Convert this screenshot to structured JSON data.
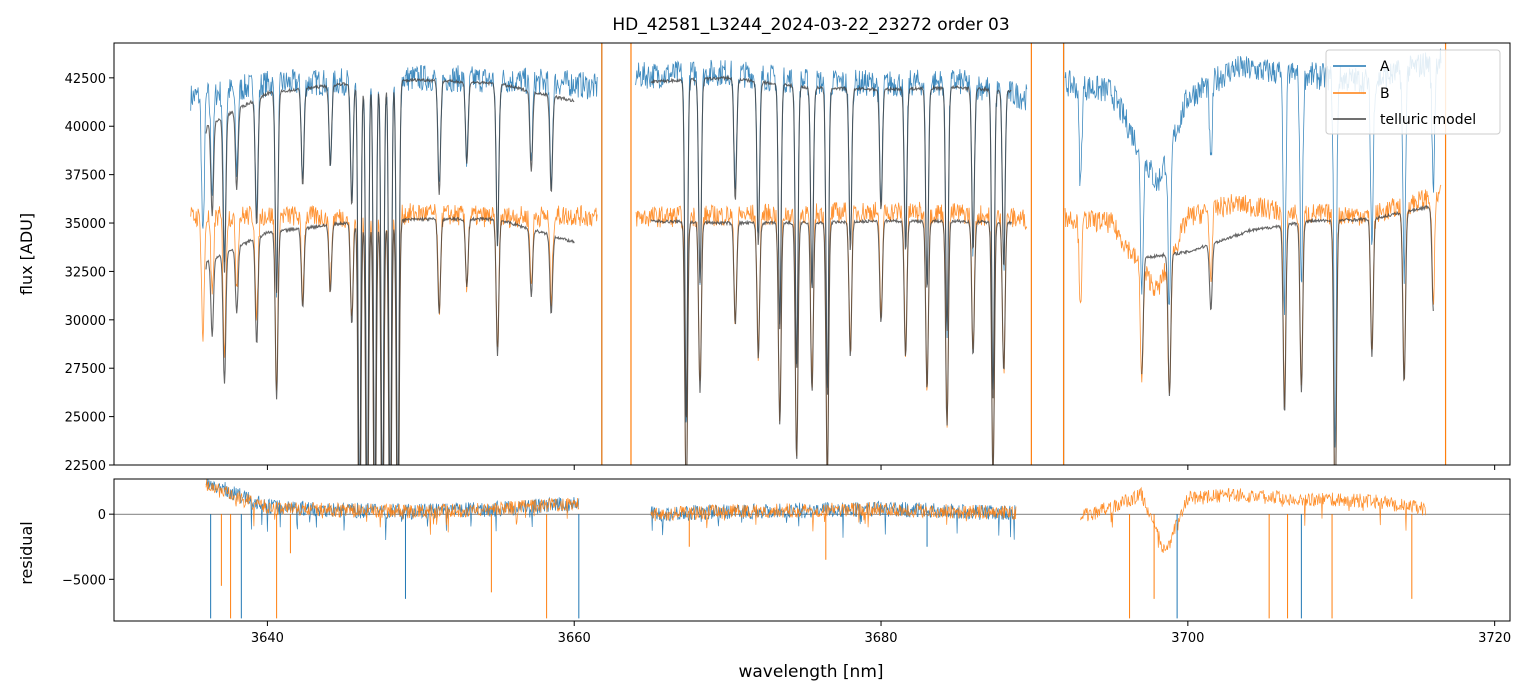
{
  "chart_data": [
    {
      "type": "line",
      "title": "HD_42581_L3244_2024-03-22_23272  order 03",
      "ylabel": "flux [ADU]",
      "xlim": [
        3630,
        3721
      ],
      "ylim": [
        22500,
        44300
      ],
      "x_ticks": [
        3640,
        3660,
        3680,
        3700,
        3720
      ],
      "y_ticks": [
        {
          "value": 22500,
          "label": "22500"
        },
        {
          "value": 25000,
          "label": "25000"
        },
        {
          "value": 27500,
          "label": "27500"
        },
        {
          "value": 30000,
          "label": "30000"
        },
        {
          "value": 32500,
          "label": "32500"
        },
        {
          "value": 35000,
          "label": "35000"
        },
        {
          "value": 37500,
          "label": "37500"
        },
        {
          "value": 40000,
          "label": "40000"
        },
        {
          "value": 42500,
          "label": "42500"
        }
      ],
      "legend": {
        "placement": "upper right",
        "entries": [
          {
            "label": "A",
            "color": "#1f77b4"
          },
          {
            "label": "B",
            "color": "#ff7f0e"
          },
          {
            "label": "telluric model",
            "color": "#404040"
          }
        ]
      },
      "series": [
        {
          "name": "A",
          "color": "#1f77b4",
          "segments": [
            {
              "x": [
                3635.0,
                3640.0,
                3645.0,
                3650.0,
                3655.0,
                3660.0,
                3661.5
              ],
              "y": [
                41500,
                42200,
                42300,
                42500,
                42400,
                42200,
                42000
              ]
            },
            {
              "x": [
                3664.0,
                3670.0,
                3675.0,
                3680.0,
                3685.0,
                3689.5
              ],
              "y": [
                42600,
                42800,
                42300,
                42200,
                42300,
                41500
              ]
            },
            {
              "x": [
                3692.0,
                3695.0,
                3698.0,
                3700.0,
                3703.0,
                3707.0,
                3712.0,
                3716.5
              ],
              "y": [
                42200,
                41800,
                37000,
                41500,
                43000,
                42700,
                42300,
                43500
              ]
            }
          ]
        },
        {
          "name": "B",
          "color": "#ff7f0e",
          "segments": [
            {
              "x": [
                3635.0,
                3640.0,
                3645.0,
                3650.0,
                3655.0,
                3660.0,
                3661.5
              ],
              "y": [
                35300,
                35400,
                35300,
                35500,
                35300,
                35400,
                35300
              ]
            },
            {
              "x": [
                3664.0,
                3670.0,
                3675.0,
                3680.0,
                3685.0,
                3689.5
              ],
              "y": [
                35300,
                35400,
                35500,
                35600,
                35500,
                35200
              ]
            },
            {
              "x": [
                3692.0,
                3695.0,
                3698.0,
                3700.0,
                3703.0,
                3707.0,
                3712.0,
                3716.5
              ],
              "y": [
                35300,
                35000,
                31500,
                35300,
                36000,
                35500,
                35400,
                36500
              ]
            }
          ]
        },
        {
          "name": "telluric model",
          "color": "#404040",
          "segments": [
            {
              "x": [
                3636.0,
                3640.0,
                3645.0,
                3650.0,
                3655.0,
                3660.0
              ],
              "y": [
                33000,
                34500,
                35000,
                35200,
                35200,
                34000
              ]
            },
            {
              "x": [
                3636.0,
                3640.0,
                3645.0,
                3650.0,
                3655.0,
                3660.0
              ],
              "y": [
                40000,
                41700,
                42200,
                42400,
                42200,
                41300
              ]
            },
            {
              "x": [
                3665.0,
                3670.0,
                3675.0,
                3680.0,
                3685.0,
                3688.5
              ],
              "y": [
                35100,
                35000,
                35000,
                35100,
                35100,
                35000
              ]
            },
            {
              "x": [
                3665.0,
                3670.0,
                3675.0,
                3680.0,
                3685.0,
                3688.5
              ],
              "y": [
                42300,
                42500,
                42000,
                41900,
                42000,
                41800
              ]
            },
            {
              "x": [
                3697.0,
                3700.0,
                3704.0,
                3708.0,
                3712.0,
                3716.0
              ],
              "y": [
                33200,
                33500,
                34600,
                35100,
                35200,
                35900
              ]
            }
          ]
        }
      ],
      "absorption_lines": [
        {
          "x": 3635.8,
          "depth": 0.18
        },
        {
          "x": 3636.4,
          "depth": 0.12
        },
        {
          "x": 3637.2,
          "depth": 0.2
        },
        {
          "x": 3638.0,
          "depth": 0.1
        },
        {
          "x": 3639.3,
          "depth": 0.16
        },
        {
          "x": 3640.6,
          "depth": 0.25
        },
        {
          "x": 3642.3,
          "depth": 0.12
        },
        {
          "x": 3644.1,
          "depth": 0.1
        },
        {
          "x": 3645.5,
          "depth": 0.15
        },
        {
          "x": 3646.0,
          "depth": 0.55
        },
        {
          "x": 3646.5,
          "depth": 0.55
        },
        {
          "x": 3647.0,
          "depth": 0.55
        },
        {
          "x": 3647.5,
          "depth": 0.55
        },
        {
          "x": 3648.0,
          "depth": 0.55
        },
        {
          "x": 3648.5,
          "depth": 0.55
        },
        {
          "x": 3651.2,
          "depth": 0.14
        },
        {
          "x": 3653.0,
          "depth": 0.1
        },
        {
          "x": 3655.0,
          "depth": 0.2
        },
        {
          "x": 3657.2,
          "depth": 0.1
        },
        {
          "x": 3658.5,
          "depth": 0.12
        },
        {
          "x": 3667.3,
          "depth": 0.42
        },
        {
          "x": 3668.2,
          "depth": 0.25
        },
        {
          "x": 3670.5,
          "depth": 0.15
        },
        {
          "x": 3672.0,
          "depth": 0.2
        },
        {
          "x": 3673.4,
          "depth": 0.3
        },
        {
          "x": 3674.5,
          "depth": 0.35
        },
        {
          "x": 3675.5,
          "depth": 0.25
        },
        {
          "x": 3676.5,
          "depth": 0.38
        },
        {
          "x": 3678.0,
          "depth": 0.2
        },
        {
          "x": 3680.0,
          "depth": 0.15
        },
        {
          "x": 3681.6,
          "depth": 0.2
        },
        {
          "x": 3683.0,
          "depth": 0.25
        },
        {
          "x": 3684.3,
          "depth": 0.3
        },
        {
          "x": 3686.0,
          "depth": 0.2
        },
        {
          "x": 3687.3,
          "depth": 0.38
        },
        {
          "x": 3688.0,
          "depth": 0.22
        },
        {
          "x": 3693.0,
          "depth": 0.12
        },
        {
          "x": 3697.0,
          "depth": 0.18
        },
        {
          "x": 3698.8,
          "depth": 0.22
        },
        {
          "x": 3701.5,
          "depth": 0.1
        },
        {
          "x": 3706.3,
          "depth": 0.28
        },
        {
          "x": 3707.4,
          "depth": 0.25
        },
        {
          "x": 3709.6,
          "depth": 0.45
        },
        {
          "x": 3712.0,
          "depth": 0.2
        },
        {
          "x": 3714.1,
          "depth": 0.25
        },
        {
          "x": 3716.0,
          "depth": 0.15
        }
      ],
      "spikes": [
        {
          "x": 3661.8,
          "color": "#1f77b4"
        },
        {
          "x": 3661.8,
          "color": "#ff7f0e"
        },
        {
          "x": 3663.7,
          "color": "#ff7f0e"
        },
        {
          "x": 3689.8,
          "color": "#ff7f0e"
        },
        {
          "x": 3691.9,
          "color": "#1f77b4"
        },
        {
          "x": 3691.9,
          "color": "#ff7f0e"
        },
        {
          "x": 3716.8,
          "color": "#ff7f0e"
        }
      ]
    },
    {
      "type": "line",
      "xlabel": "wavelength [nm]",
      "ylabel": "residual",
      "xlim": [
        3630,
        3721
      ],
      "ylim": [
        -8200,
        2700
      ],
      "x_ticks": [
        {
          "value": 3640,
          "label": "3640"
        },
        {
          "value": 3660,
          "label": "3660"
        },
        {
          "value": 3680,
          "label": "3680"
        },
        {
          "value": 3700,
          "label": "3700"
        },
        {
          "value": 3720,
          "label": "3720"
        }
      ],
      "y_ticks": [
        {
          "value": 0,
          "label": "0"
        },
        {
          "value": -5000,
          "label": "−5000"
        }
      ],
      "zero_line": 0,
      "series": [
        {
          "name": "A",
          "color": "#1f77b4",
          "segments": [
            {
              "x": [
                3636.0,
                3638.0,
                3640.0,
                3645.0,
                3650.0,
                3655.0,
                3660.3
              ],
              "y": [
                2500,
                1500,
                600,
                300,
                200,
                400,
                800
              ]
            },
            {
              "x": [
                3665.0,
                3670.0,
                3675.0,
                3680.0,
                3685.0,
                3688.8
              ],
              "y": [
                0,
                200,
                300,
                400,
                200,
                100
              ]
            }
          ]
        },
        {
          "name": "B",
          "color": "#ff7f0e",
          "segments": [
            {
              "x": [
                3636.0,
                3638.0,
                3640.0,
                3645.0,
                3650.0,
                3655.0,
                3660.3
              ],
              "y": [
                2200,
                1300,
                500,
                300,
                200,
                400,
                900
              ]
            },
            {
              "x": [
                3665.0,
                3670.0,
                3675.0,
                3680.0,
                3685.0,
                3688.8
              ],
              "y": [
                0,
                200,
                300,
                400,
                200,
                100
              ]
            },
            {
              "x": [
                3693.0,
                3695.0,
                3697.0,
                3698.5,
                3700.0,
                3703.0,
                3707.0,
                3712.0,
                3715.5
              ],
              "y": [
                -200,
                500,
                1500,
                -3000,
                1200,
                1500,
                1200,
                1000,
                400
              ]
            }
          ]
        }
      ],
      "drops": [
        {
          "x": 3636.3,
          "y": -8000
        },
        {
          "x": 3637.0,
          "y": -5500
        },
        {
          "x": 3637.6,
          "y": -8000
        },
        {
          "x": 3638.3,
          "y": -8000
        },
        {
          "x": 3640.6,
          "y": -8000
        },
        {
          "x": 3641.5,
          "y": -3000
        },
        {
          "x": 3649.0,
          "y": -6500
        },
        {
          "x": 3654.6,
          "y": -6000
        },
        {
          "x": 3658.2,
          "y": -8000
        },
        {
          "x": 3660.3,
          "y": -8000
        },
        {
          "x": 3667.5,
          "y": -2500
        },
        {
          "x": 3676.4,
          "y": -3500
        },
        {
          "x": 3683.0,
          "y": -2500
        },
        {
          "x": 3696.2,
          "y": -8000
        },
        {
          "x": 3697.8,
          "y": -6500
        },
        {
          "x": 3699.3,
          "y": -8000
        },
        {
          "x": 3705.3,
          "y": -8000
        },
        {
          "x": 3706.5,
          "y": -8000
        },
        {
          "x": 3707.4,
          "y": -8000
        },
        {
          "x": 3709.4,
          "y": -8000
        },
        {
          "x": 3714.6,
          "y": -6500
        }
      ]
    }
  ]
}
